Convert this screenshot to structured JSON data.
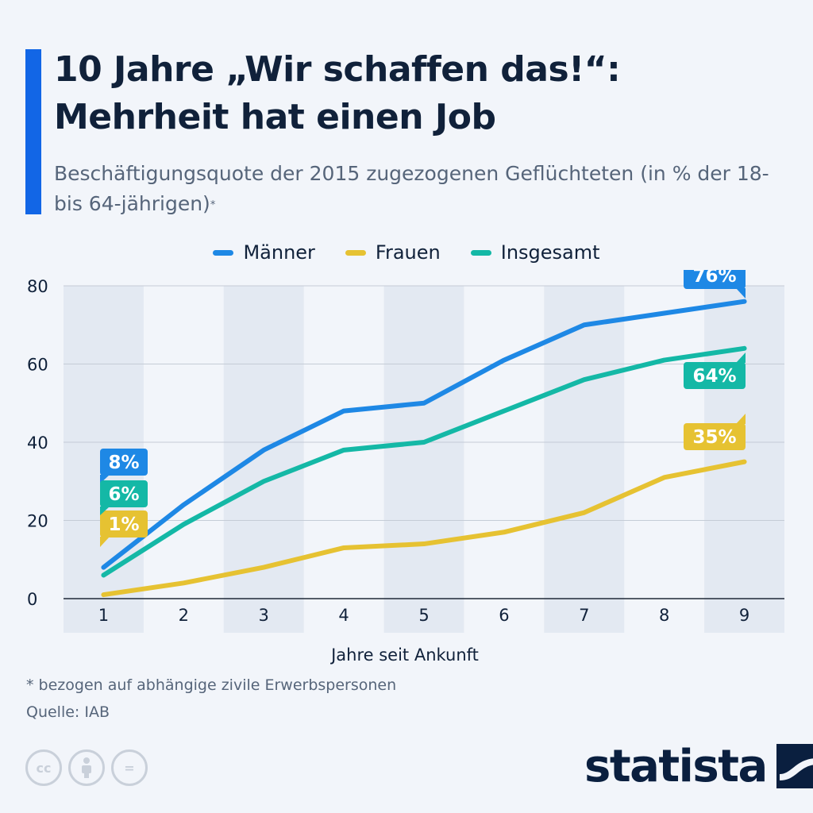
{
  "header": {
    "title": "10 Jahre „Wir schaffen das!“: Mehrheit hat einen Job",
    "subtitle": "Beschäftigungsquote der 2015 zugezogenen Geflüchteten (in % der 18- bis 64-jährigen)",
    "subtitle_mark": "*"
  },
  "legend": [
    {
      "label": "Männer",
      "color": "#1e88e5"
    },
    {
      "label": "Frauen",
      "color": "#e6c232"
    },
    {
      "label": "Insgesamt",
      "color": "#14b8a6"
    }
  ],
  "chart_data": {
    "type": "line",
    "x": [
      1,
      2,
      3,
      4,
      5,
      6,
      7,
      8,
      9
    ],
    "xlabel": "Jahre seit Ankunft",
    "ylabel": "",
    "ylim": [
      0,
      80
    ],
    "yticks": [
      0,
      20,
      40,
      60,
      80
    ],
    "grid": true,
    "legend_position": "top",
    "series": [
      {
        "name": "Männer",
        "color": "#1e88e5",
        "values": [
          8,
          24,
          38,
          48,
          50,
          61,
          70,
          73,
          76
        ],
        "labels": [
          {
            "text": "8%",
            "index": 0
          },
          {
            "text": "76%",
            "index": 8
          }
        ]
      },
      {
        "name": "Frauen",
        "color": "#e6c232",
        "values": [
          1,
          4,
          8,
          13,
          14,
          17,
          22,
          31,
          35
        ],
        "labels": [
          {
            "text": "1%",
            "index": 0
          },
          {
            "text": "35%",
            "index": 8
          }
        ]
      },
      {
        "name": "Insgesamt",
        "color": "#14b8a6",
        "values": [
          6,
          19,
          30,
          38,
          40,
          48,
          56,
          61,
          64
        ],
        "labels": [
          {
            "text": "6%",
            "index": 0
          },
          {
            "text": "64%",
            "index": 8
          }
        ]
      }
    ]
  },
  "footer": {
    "footnote": "* bezogen auf abhängige zivile Erwerbspersonen",
    "source": "Quelle: IAB",
    "brand": "statista",
    "license_icons": [
      "cc",
      "by",
      "="
    ]
  }
}
